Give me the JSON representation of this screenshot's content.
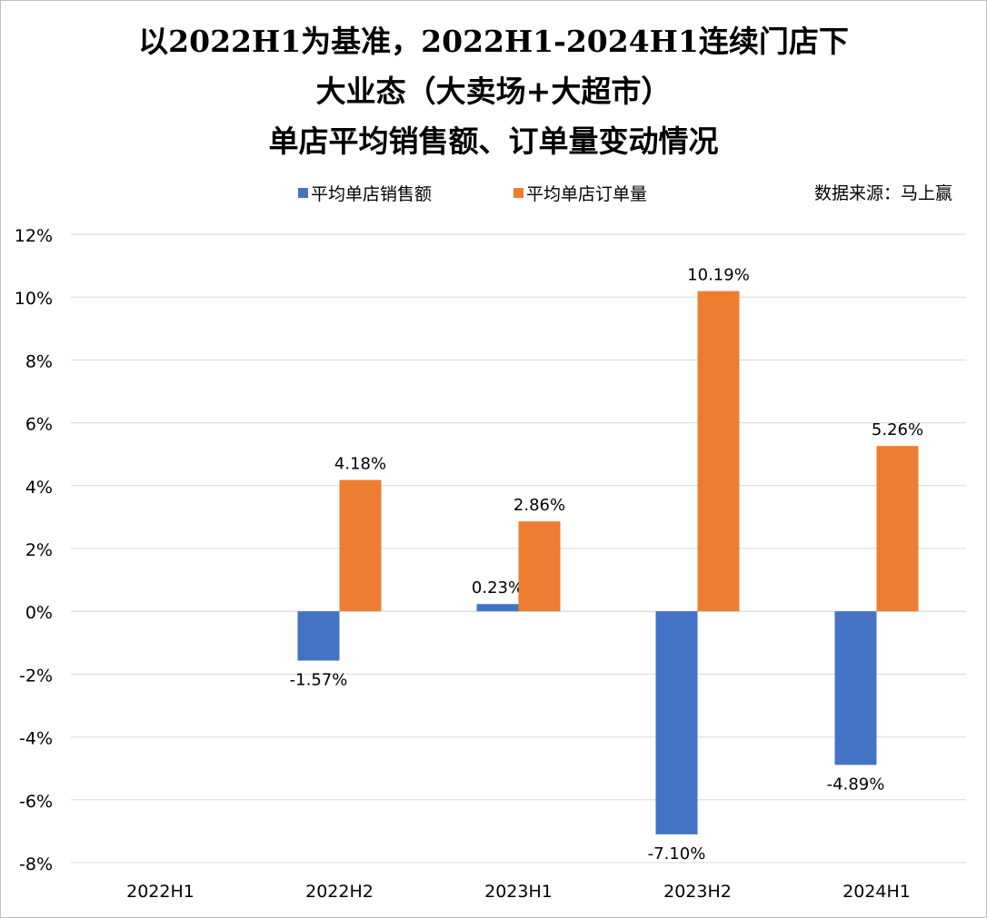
{
  "chart_data": {
    "type": "bar",
    "title_lines": [
      "以2022H1为基准，2022H1-2024H1连续门店下",
      "大业态（大卖场+大超市）",
      "单店平均销售额、订单量变动情况"
    ],
    "categories": [
      "2022H1",
      "2022H2",
      "2023H1",
      "2023H2",
      "2024H1"
    ],
    "series": [
      {
        "name": "平均单店销售额",
        "color": "#4472C4",
        "values": [
          null,
          -1.57,
          0.23,
          -7.1,
          -4.89
        ],
        "labels": [
          "",
          "-1.57%",
          "0.23%",
          "-7.10%",
          "-4.89%"
        ]
      },
      {
        "name": "平均单店订单量",
        "color": "#ED7D31",
        "values": [
          null,
          4.18,
          2.86,
          10.19,
          5.26
        ],
        "labels": [
          "",
          "4.18%",
          "2.86%",
          "10.19%",
          "5.26%"
        ]
      }
    ],
    "source_note": "数据来源：马上赢",
    "ylim": [
      -8,
      12
    ],
    "yticks": [
      12,
      10,
      8,
      6,
      4,
      2,
      0,
      -2,
      -4,
      -6,
      -8
    ],
    "ytick_labels": [
      "12%",
      "10%",
      "8%",
      "6%",
      "4%",
      "2%",
      "0%",
      "-2%",
      "-4%",
      "-6%",
      "-8%"
    ],
    "grid": true,
    "legend_position": "top-center",
    "xlabel": "",
    "ylabel": ""
  }
}
